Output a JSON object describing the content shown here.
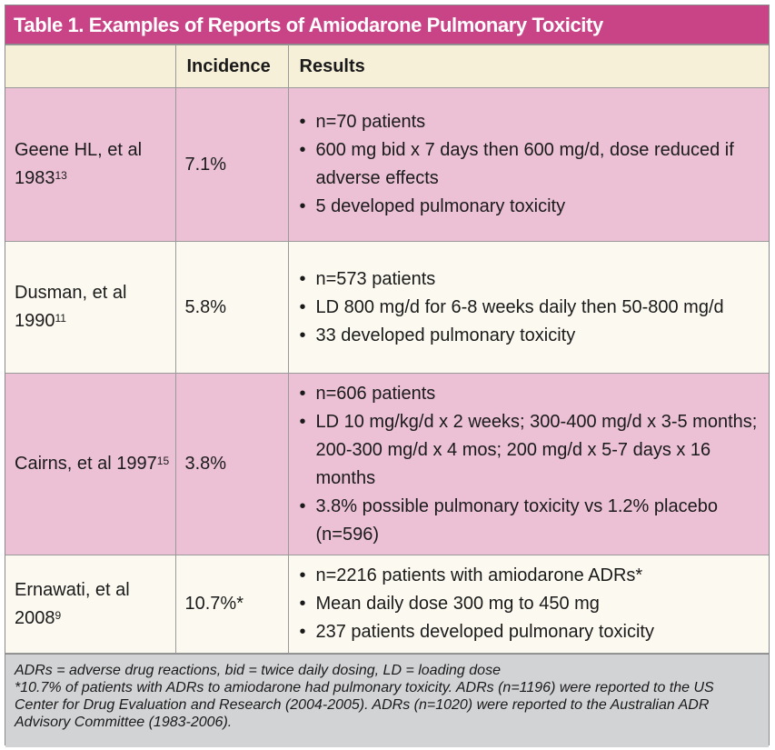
{
  "title": "Table 1. Examples of Reports of Amiodarone Pulmonary Toxicity",
  "headers": {
    "study": "",
    "incidence": "Incidence",
    "results": "Results"
  },
  "rows": [
    {
      "study": "Geene HL, et al 1983",
      "ref": "13",
      "incidence": "7.1%",
      "results": [
        "n=70 patients",
        "600 mg bid x 7 days then 600 mg/d, dose reduced if adverse effects",
        "5 developed pulmonary toxicity"
      ]
    },
    {
      "study": "Dusman, et al 1990",
      "ref": "11",
      "incidence": "5.8%",
      "results": [
        "n=573 patients",
        "LD 800 mg/d for 6-8 weeks daily then 50-800 mg/d",
        "33 developed pulmonary toxicity"
      ]
    },
    {
      "study": "Cairns, et al 1997",
      "ref": "15",
      "incidence": "3.8%",
      "results": [
        "n=606 patients",
        "LD 10 mg/kg/d x 2 weeks; 300-400 mg/d x 3-5 months; 200-300 mg/d x 4 mos; 200 mg/d x 5-7 days x 16 months",
        "3.8% possible pulmonary toxicity vs 1.2% placebo (n=596)"
      ]
    },
    {
      "study": "Ernawati, et al 2008",
      "ref": "9",
      "incidence": "10.7%*",
      "results": [
        "n=2216 patients with amiodarone ADRs*",
        "Mean daily dose 300 mg to 450 mg",
        "237 patients developed pulmonary toxicity"
      ]
    }
  ],
  "footnotes": [
    "ADRs = adverse drug reactions, bid = twice daily dosing, LD = loading dose",
    "*10.7% of patients with ADRs to amiodarone had pulmonary toxicity. ADRs (n=1196) were reported to the US Center for Drug Evaluation and Research (2004-2005). ADRs (n=1020) were reported to the Australian ADR Advisory Committee (1983-2006)."
  ],
  "colors": {
    "title_bg": "#c94387",
    "header_bg": "#f7f0d8",
    "pink_row": "#ecc1d5",
    "cream_row": "#fcfaf0",
    "footnote_bg": "#d2d3d5"
  }
}
